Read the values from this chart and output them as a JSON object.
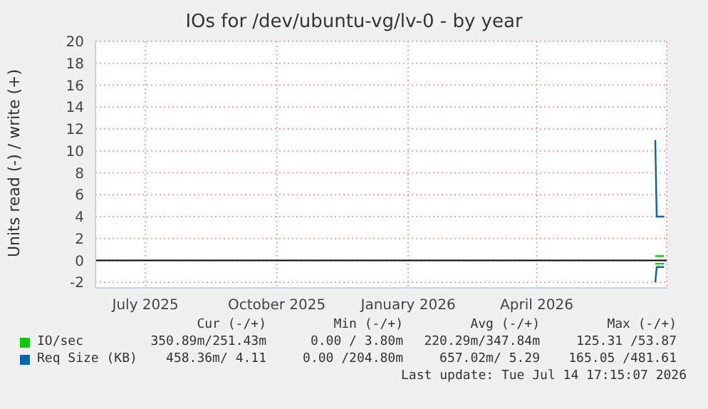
{
  "chart_data": {
    "type": "line",
    "title": "IOs for /dev/ubuntu-vg/lv-0 - by year",
    "ylabel": "Units read (-) / write (+)",
    "xlim": [
      "2025-05-27",
      "2026-07-01"
    ],
    "xticks": [
      {
        "value": "2025-07-01",
        "label": "July 2025"
      },
      {
        "value": "2025-10-01",
        "label": "October 2025"
      },
      {
        "value": "2026-01-01",
        "label": "January 2026"
      },
      {
        "value": "2026-04-01",
        "label": "April 2026"
      }
    ],
    "ylim": [
      -2.5,
      20
    ],
    "yticks": [
      -2,
      0,
      2,
      4,
      6,
      8,
      10,
      12,
      14,
      16,
      18,
      20
    ],
    "grid": true,
    "legend": "bottom",
    "marker": "none",
    "line_style": "solid",
    "ref_lines": [
      {
        "axis": "y",
        "value": 0,
        "color": "#000000"
      }
    ],
    "series": [
      {
        "name": "IO/sec",
        "color": "#00cc00",
        "x": [
          "2026-06-23",
          "2026-06-24",
          "2026-06-29"
        ],
        "values": [
          0.4,
          0.4,
          0.4
        ]
      },
      {
        "color": "#00cc00",
        "x": [
          "2026-06-23",
          "2026-06-24",
          "2026-06-29"
        ],
        "values": [
          -0.3,
          -0.3,
          -0.3
        ]
      },
      {
        "name": "Req Size (KB)",
        "color": "#0066b3",
        "x": [
          "2026-06-23",
          "2026-06-24",
          "2026-06-29"
        ],
        "values": [
          11,
          4,
          4
        ]
      },
      {
        "color": "#0066b3",
        "x": [
          "2026-06-23",
          "2026-06-24",
          "2026-06-29"
        ],
        "values": [
          -2,
          -0.6,
          -0.6
        ]
      }
    ],
    "annotations": [
      "Cur (-/+)",
      "Min (-/+)",
      "Avg (-/+)",
      "Max (-/+)",
      "350.89m/251.43m",
      "0.00 / 3.80m",
      "220.29m/347.84m",
      "125.31 /53.87",
      "458.36m/ 4.11",
      "0.00 /204.80m",
      "657.02m/ 5.29",
      "165.05 /481.61",
      "Last update: Tue Jul 14 17:15:07 2026"
    ]
  }
}
